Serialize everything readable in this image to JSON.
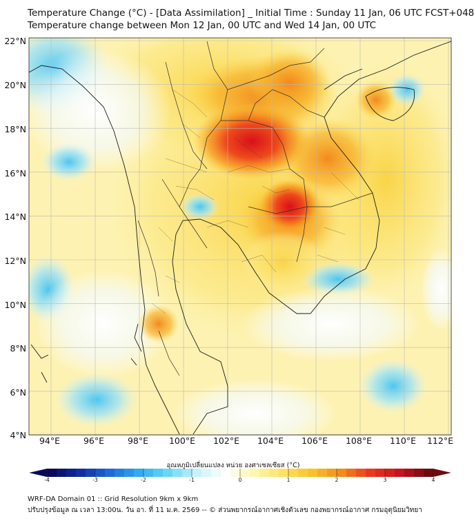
{
  "title_line1": "Temperature Change (°C) - [Data Assimilation] _ Initial Time : Sunday 11 Jan, 06 UTC FCST+048",
  "title_line2": "Temperature change between Mon 12 Jan, 00 UTC and Wed 14 Jan, 00 UTC",
  "lat_labels": [
    "22°N",
    "20°N",
    "18°N",
    "16°N",
    "14°N",
    "12°N",
    "10°N",
    "8°N",
    "6°N",
    "4°N"
  ],
  "lon_labels": [
    "94°E",
    "96°E",
    "98°E",
    "100°E",
    "102°E",
    "104°E",
    "106°E",
    "108°E",
    "110°E",
    "112°E"
  ],
  "colorbar": {
    "title": "อุณหภูมิเปลี่ยนแปลง หน่วย องศาเซลเซียส (°C)",
    "ticks": [
      "-4",
      "-3",
      "-2",
      "-1",
      "0",
      "1",
      "2",
      "3",
      "4"
    ],
    "colors": [
      "#0a0a5a",
      "#1030a0",
      "#1e6ad8",
      "#30aaf0",
      "#66d8f6",
      "#c4f2fb",
      "#ffffff",
      "#fdf6b0",
      "#fbe260",
      "#f9c12a",
      "#f38a1a",
      "#e8381e",
      "#c8121c",
      "#6e0a0e"
    ]
  },
  "footer_line1": "WRF-DA Domain 01 :: Grid Resolution 9km x 9km",
  "footer_line2": "ปรับปรุงข้อมูล ณ เวลา 13:00น. วัน อา. ที่ 11 ม.ค. 2569 -- © ส่วนพยากรณ์อากาศเชิงตัวเลข กองพยากรณ์อากาศ กรมอุตุนิยมวิทยา"
}
